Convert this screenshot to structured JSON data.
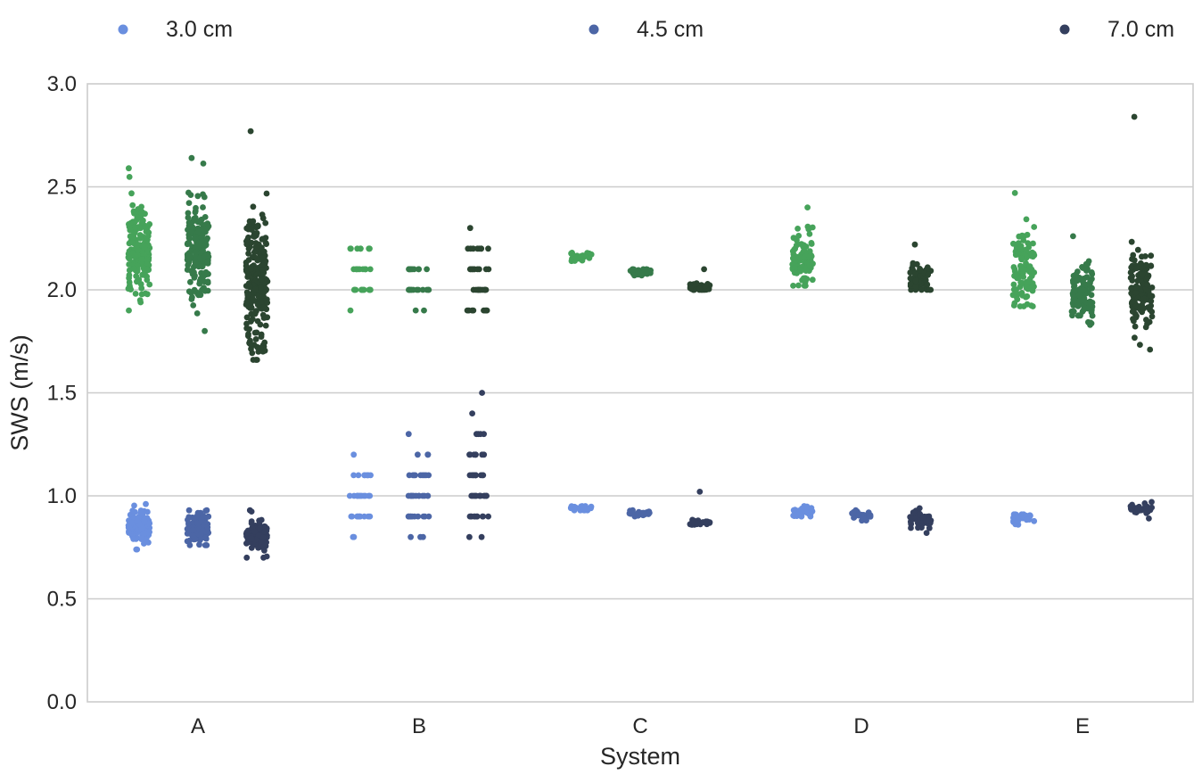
{
  "chart_data": {
    "type": "scatter",
    "subtype": "strip",
    "title": "",
    "xlabel": "System",
    "ylabel": "SWS (m/s)",
    "ylim": [
      0.0,
      3.0
    ],
    "yticks": [
      "0.0",
      "0.5",
      "1.0",
      "1.5",
      "2.0",
      "2.5",
      "3.0"
    ],
    "categories": [
      "A",
      "B",
      "C",
      "D",
      "E"
    ],
    "grid": "horizontal",
    "legend_position": "top",
    "legend": [
      {
        "label": "3.0 cm",
        "color": "#6a8fdf"
      },
      {
        "label": "4.5 cm",
        "color": "#4c66a6"
      },
      {
        "label": "7.0 cm",
        "color": "#343f5e"
      }
    ],
    "series": [
      {
        "name": "3.0 cm",
        "color_low": "#6a8fdf",
        "color_high": "#46a35a",
        "groups": [
          {
            "category": "A",
            "low": {
              "center": 0.86,
              "spread": 0.045,
              "min": 0.74,
              "max": 0.96,
              "n": 110
            },
            "high": {
              "center": 2.2,
              "spread": 0.12,
              "min": 1.9,
              "max": 2.59,
              "n": 180
            }
          },
          {
            "category": "B",
            "low": {
              "levels": [
                0.8,
                0.9,
                1.0,
                1.1,
                1.2
              ],
              "weights": [
                2,
                10,
                12,
                8,
                1
              ]
            },
            "high": {
              "levels": [
                1.9,
                2.0,
                2.1,
                2.2
              ],
              "weights": [
                1,
                12,
                10,
                8
              ]
            }
          },
          {
            "category": "C",
            "low": {
              "center": 0.94,
              "spread": 0.007,
              "min": 0.93,
              "max": 0.95,
              "n": 25
            },
            "high": {
              "center": 2.16,
              "spread": 0.01,
              "min": 2.14,
              "max": 2.18,
              "n": 25
            }
          },
          {
            "category": "D",
            "low": {
              "center": 0.92,
              "spread": 0.012,
              "min": 0.9,
              "max": 0.95,
              "n": 30
            },
            "high": {
              "center": 2.15,
              "spread": 0.06,
              "min": 2.02,
              "max": 2.4,
              "n": 90
            }
          },
          {
            "category": "E",
            "low": {
              "center": 0.89,
              "spread": 0.012,
              "min": 0.86,
              "max": 0.91,
              "n": 30
            },
            "high": {
              "center": 2.1,
              "spread": 0.09,
              "min": 1.92,
              "max": 2.47,
              "n": 110
            }
          }
        ]
      },
      {
        "name": "4.5 cm",
        "color_low": "#4c66a6",
        "color_high": "#367a4a",
        "groups": [
          {
            "category": "A",
            "low": {
              "center": 0.84,
              "spread": 0.04,
              "min": 0.76,
              "max": 0.93,
              "n": 100
            },
            "high": {
              "center": 2.2,
              "spread": 0.13,
              "min": 1.8,
              "max": 2.64,
              "n": 180
            }
          },
          {
            "category": "B",
            "low": {
              "levels": [
                0.8,
                0.9,
                1.0,
                1.1,
                1.2,
                1.3
              ],
              "weights": [
                3,
                10,
                12,
                9,
                3,
                1
              ]
            },
            "high": {
              "levels": [
                1.9,
                2.0,
                2.1
              ],
              "weights": [
                2,
                12,
                10
              ]
            }
          },
          {
            "category": "C",
            "low": {
              "center": 0.915,
              "spread": 0.006,
              "min": 0.9,
              "max": 0.93,
              "n": 25
            },
            "high": {
              "center": 2.085,
              "spread": 0.008,
              "min": 2.07,
              "max": 2.1,
              "n": 25
            }
          },
          {
            "category": "D",
            "low": {
              "center": 0.9,
              "spread": 0.012,
              "min": 0.88,
              "max": 0.93,
              "n": 30
            },
            "high": null
          },
          {
            "category": "E",
            "low": null,
            "high": {
              "center": 1.98,
              "spread": 0.065,
              "min": 1.83,
              "max": 2.26,
              "n": 110
            }
          }
        ]
      },
      {
        "name": "7.0 cm",
        "color_low": "#343f5e",
        "color_high": "#2b4530",
        "groups": [
          {
            "category": "A",
            "low": {
              "center": 0.8,
              "spread": 0.04,
              "min": 0.7,
              "max": 0.93,
              "n": 100
            },
            "high": {
              "center": 2.05,
              "spread": 0.17,
              "min": 1.66,
              "max": 2.77,
              "n": 230
            }
          },
          {
            "category": "B",
            "low": {
              "levels": [
                0.8,
                0.9,
                1.0,
                1.1,
                1.2,
                1.3,
                1.4,
                1.5
              ],
              "weights": [
                2,
                10,
                12,
                10,
                7,
                4,
                1,
                1
              ]
            },
            "high": {
              "levels": [
                1.9,
                2.0,
                2.1,
                2.2,
                2.3
              ],
              "weights": [
                8,
                12,
                10,
                8,
                1
              ]
            }
          },
          {
            "category": "C",
            "low": {
              "center": 0.87,
              "spread": 0.008,
              "min": 0.86,
              "max": 1.02,
              "n": 30
            },
            "high": {
              "center": 2.015,
              "spread": 0.01,
              "min": 2.0,
              "max": 2.1,
              "n": 35
            }
          },
          {
            "category": "D",
            "low": {
              "center": 0.88,
              "spread": 0.02,
              "min": 0.82,
              "max": 0.94,
              "n": 50
            },
            "high": {
              "center": 2.05,
              "spread": 0.035,
              "min": 2.0,
              "max": 2.22,
              "n": 70
            }
          },
          {
            "category": "E",
            "low": {
              "center": 0.935,
              "spread": 0.012,
              "min": 0.89,
              "max": 0.97,
              "n": 30
            },
            "high": {
              "center": 2.0,
              "spread": 0.1,
              "min": 1.71,
              "max": 2.84,
              "n": 140
            }
          }
        ]
      }
    ]
  }
}
